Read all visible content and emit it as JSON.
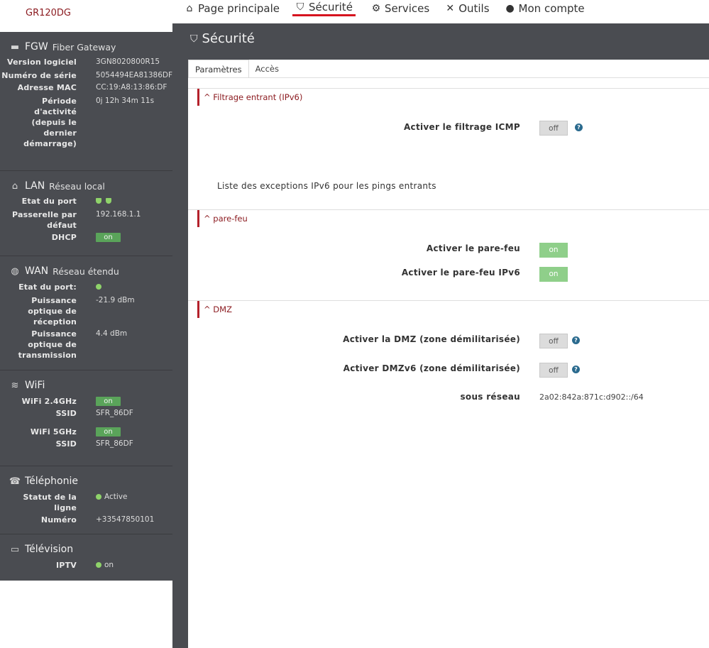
{
  "brand": "GR120DG",
  "nav": [
    {
      "label": "Page principale",
      "icon": "home-icon"
    },
    {
      "label": "Sécurité",
      "icon": "shield-icon"
    },
    {
      "label": "Services",
      "icon": "gears-icon"
    },
    {
      "label": "Outils",
      "icon": "tools-icon"
    },
    {
      "label": "Mon compte",
      "icon": "user-icon"
    }
  ],
  "sidebar": {
    "fgw": {
      "title": "FGW",
      "subtitle": "Fiber Gateway",
      "rows": [
        {
          "label": "Version logiciel",
          "value": "3GN8020800R15"
        },
        {
          "label": "Numéro de série",
          "value": "5054494EA81386DF"
        },
        {
          "label": "Adresse MAC",
          "value": "CC:19:A8:13:86:DF"
        },
        {
          "label": "Période d'activité (depuis le dernier démarrage)",
          "value": "0j 12h 34m 11s"
        }
      ]
    },
    "lan": {
      "title": "LAN",
      "subtitle": "Réseau local",
      "port_label": "Etat du port",
      "gateway_label": "Passerelle par défaut",
      "gateway_value": "192.168.1.1",
      "dhcp_label": "DHCP",
      "dhcp_value": "on"
    },
    "wan": {
      "title": "WAN",
      "subtitle": "Réseau étendu",
      "port_label": "Etat du port:",
      "rx_label": "Puissance optique de réception",
      "rx_value": "-21.9 dBm",
      "tx_label": "Puissance optique de transmission",
      "tx_value": "4.4 dBm"
    },
    "wifi": {
      "title": "WiFi",
      "w24_label": "WiFi 2.4GHz",
      "w24_value": "on",
      "ssid_label": "SSID",
      "ssid24_value": "SFR_86DF",
      "w5_label": "WiFi 5GHz",
      "w5_value": "on",
      "ssid5_value": "SFR_86DF"
    },
    "tel": {
      "title": "Téléphonie",
      "status_label": "Statut de la ligne",
      "status_value": "Active",
      "number_label": "Numéro",
      "number_value": "+33547850101"
    },
    "tv": {
      "title": "Télévision",
      "iptv_label": "IPTV",
      "iptv_value": "on"
    }
  },
  "main": {
    "title": "Sécurité",
    "tabs": [
      {
        "label": "Paramètres"
      },
      {
        "label": "Accès"
      }
    ],
    "filtering": {
      "header": "Filtrage entrant (IPv6)",
      "icmp_label": "Activer le filtrage ICMP",
      "icmp_value": "off",
      "exceptions_text": "Liste des exceptions IPv6 pour les pings entrants"
    },
    "firewall": {
      "header": "pare-feu",
      "fw_label": "Activer le pare-feu",
      "fw_value": "on",
      "fw6_label": "Activer le pare-feu IPv6",
      "fw6_value": "on"
    },
    "dmz": {
      "header": "DMZ",
      "dmz_label": "Activer la DMZ (zone démilitarisée)",
      "dmz_value": "off",
      "dmz6_label": "Activer DMZv6 (zone démilitarisée)",
      "dmz6_value": "off",
      "subnet_label": "sous réseau",
      "subnet_value": "2a02:842a:871c:d902::/64"
    },
    "help_glyph": "?",
    "chevron": "^"
  }
}
